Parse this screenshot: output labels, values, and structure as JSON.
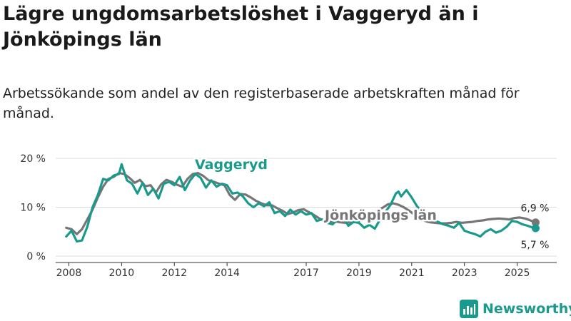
{
  "header": {
    "title": "Lägre ungdomsarbetslöshet i Vaggeryd än i Jönköpings län",
    "subtitle": "Arbetssökande som andel av den registerbaserade arbetskraften månad för månad."
  },
  "brand": {
    "name": "Newsworthy",
    "color": "#1a9a8c"
  },
  "chart_data": {
    "type": "line",
    "title": "Lägre ungdomsarbetslöshet i Vaggeryd än i Jönköpings län",
    "subtitle": "Arbetssökande som andel av den registerbaserade arbetskraften månad för månad.",
    "xlabel": "",
    "ylabel": "",
    "xlim": [
      2007.5,
      2026.5
    ],
    "ylim": [
      0,
      20
    ],
    "x_ticks": [
      2008,
      2010,
      2012,
      2014,
      2017,
      2019,
      2021,
      2023,
      2025
    ],
    "y_ticks": [
      {
        "value": 0,
        "label": "0 %"
      },
      {
        "value": 10,
        "label": "10 %"
      },
      {
        "value": 20,
        "label": "20 %"
      }
    ],
    "grid": true,
    "series": [
      {
        "name": "Jönköpings län",
        "label": "Jönköpings län",
        "color": "#767676",
        "end_label": "6,9 %",
        "x": [
          2007.9,
          2008.1,
          2008.3,
          2008.5,
          2008.7,
          2008.9,
          2009.1,
          2009.3,
          2009.5,
          2009.7,
          2009.9,
          2010.1,
          2010.3,
          2010.5,
          2010.7,
          2010.9,
          2011.1,
          2011.3,
          2011.5,
          2011.7,
          2011.9,
          2012.1,
          2012.3,
          2012.5,
          2012.7,
          2012.9,
          2013.1,
          2013.3,
          2013.5,
          2013.7,
          2013.9,
          2014.1,
          2014.3,
          2014.5,
          2014.7,
          2014.9,
          2015.1,
          2015.3,
          2015.5,
          2015.7,
          2015.9,
          2016.1,
          2016.3,
          2016.5,
          2016.7,
          2016.9,
          2017.1,
          2017.3,
          2017.5,
          2017.7,
          2017.9,
          2018.1,
          2018.3,
          2018.5,
          2018.7,
          2018.9,
          2019.1,
          2019.3,
          2019.5,
          2019.7,
          2019.9,
          2020.1,
          2020.3,
          2020.5,
          2020.7,
          2020.9,
          2021.1,
          2021.3,
          2021.5,
          2021.7,
          2021.9,
          2022.1,
          2022.3,
          2022.5,
          2022.7,
          2022.9,
          2023.1,
          2023.3,
          2023.5,
          2023.7,
          2023.9,
          2024.1,
          2024.3,
          2024.5,
          2024.7,
          2024.9,
          2025.1,
          2025.3,
          2025.5,
          2025.7
        ],
        "values": [
          5.8,
          5.5,
          4.5,
          5.5,
          7.5,
          9.5,
          12,
          14.2,
          15.8,
          16.2,
          17,
          16.8,
          16,
          15,
          15.6,
          14.3,
          14.5,
          13,
          14.7,
          15.6,
          15.2,
          14.6,
          14.2,
          15.8,
          16.8,
          17,
          16.4,
          15.5,
          15.2,
          14.8,
          14.5,
          12.5,
          11.5,
          12.7,
          12.6,
          12,
          11.3,
          10.8,
          10.4,
          10.4,
          9.8,
          9.3,
          8.6,
          8.9,
          9.4,
          9.6,
          9.0,
          8.4,
          7.7,
          7.2,
          7.0,
          7.1,
          6.9,
          6.8,
          6.9,
          7.0,
          7.4,
          7.6,
          8.4,
          9.3,
          9.9,
          10.6,
          10.8,
          10.5,
          10.0,
          9.3,
          8.5,
          7.8,
          7.2,
          6.9,
          6.8,
          6.7,
          6.7,
          6.8,
          7.0,
          6.8,
          6.9,
          7.0,
          7.2,
          7.3,
          7.5,
          7.6,
          7.7,
          7.6,
          7.5,
          7.8,
          7.9,
          7.7,
          7.3,
          6.9
        ]
      },
      {
        "name": "Vaggeryd",
        "label": "Vaggeryd",
        "color": "#1a9a8c",
        "end_label": "5,7 %",
        "x": [
          2007.9,
          2008.1,
          2008.3,
          2008.5,
          2008.7,
          2008.9,
          2009.1,
          2009.3,
          2009.5,
          2009.7,
          2009.9,
          2010.0,
          2010.2,
          2010.4,
          2010.6,
          2010.8,
          2011.0,
          2011.2,
          2011.4,
          2011.6,
          2011.8,
          2012.0,
          2012.2,
          2012.4,
          2012.6,
          2012.8,
          2013.0,
          2013.2,
          2013.4,
          2013.6,
          2013.8,
          2014.0,
          2014.2,
          2014.4,
          2014.6,
          2014.8,
          2015.0,
          2015.2,
          2015.4,
          2015.6,
          2015.8,
          2016.0,
          2016.2,
          2016.4,
          2016.6,
          2016.8,
          2017.0,
          2017.2,
          2017.4,
          2017.6,
          2017.8,
          2018.0,
          2018.2,
          2018.4,
          2018.6,
          2018.8,
          2019.0,
          2019.2,
          2019.4,
          2019.6,
          2019.8,
          2020.0,
          2020.2,
          2020.4,
          2020.5,
          2020.6,
          2020.8,
          2021.0,
          2021.2,
          2021.4,
          2021.6,
          2021.8,
          2022.0,
          2022.2,
          2022.4,
          2022.6,
          2022.8,
          2023.0,
          2023.2,
          2023.4,
          2023.6,
          2023.8,
          2024.0,
          2024.2,
          2024.4,
          2024.6,
          2024.8,
          2025.0,
          2025.2,
          2025.4,
          2025.6,
          2025.7
        ],
        "values": [
          4.0,
          5.2,
          3.0,
          3.2,
          6.0,
          10.0,
          12.5,
          15.8,
          15.5,
          16.5,
          16.8,
          18.8,
          15.5,
          14.8,
          12.8,
          15.0,
          12.5,
          13.8,
          11.8,
          14.8,
          15.2,
          14.5,
          16.2,
          13.5,
          15.5,
          16.8,
          16.0,
          14.0,
          15.5,
          14.2,
          14.8,
          14.5,
          12.8,
          13.0,
          12.2,
          10.8,
          10.0,
          10.8,
          10.2,
          11.0,
          8.8,
          9.2,
          8.2,
          9.5,
          8.5,
          9.2,
          8.5,
          8.8,
          7.2,
          7.5,
          6.8,
          6.5,
          7.5,
          8.0,
          6.2,
          7.0,
          6.8,
          5.8,
          6.4,
          5.6,
          7.5,
          9.0,
          10.5,
          12.8,
          13.2,
          12.2,
          13.5,
          12.0,
          10.2,
          9.0,
          8.5,
          7.8,
          7.0,
          6.5,
          6.2,
          5.8,
          6.8,
          5.2,
          4.8,
          4.5,
          4.0,
          5.0,
          5.5,
          4.8,
          5.2,
          6.0,
          7.2,
          7.0,
          6.5,
          6.2,
          5.8,
          5.7
        ]
      }
    ]
  }
}
